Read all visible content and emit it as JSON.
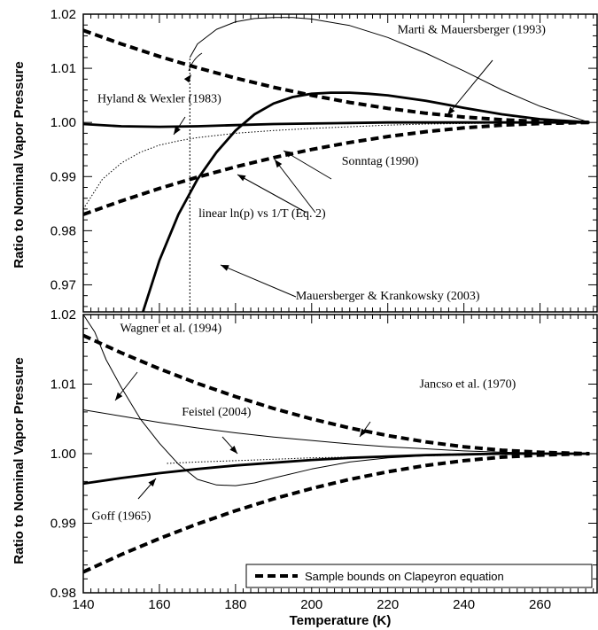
{
  "chart_data": [
    {
      "type": "line",
      "panel": "top",
      "ylabel": "Ratio to Nominal Vapor Pressure",
      "xlim": [
        140,
        275
      ],
      "ylim": [
        0.965,
        1.02
      ],
      "x_ticks": [
        140,
        160,
        180,
        200,
        220,
        240,
        260
      ],
      "y_ticks": [
        0.97,
        0.98,
        0.99,
        1.0,
        1.01,
        1.02
      ],
      "y_tick_labels": [
        "0.97",
        "0.98",
        "0.99",
        "1.00",
        "1.01",
        "1.02"
      ],
      "series": [
        {
          "style": "dashed-thick",
          "x": [
            140,
            150,
            160,
            170,
            180,
            190,
            200,
            210,
            220,
            230,
            240,
            250,
            260,
            273
          ],
          "y": [
            1.017,
            1.0145,
            1.0122,
            1.0101,
            1.0082,
            1.0065,
            1.005,
            1.0037,
            1.0026,
            1.0017,
            1.001,
            1.0005,
            1.0002,
            1.0
          ]
        },
        {
          "style": "dashed-thick",
          "x": [
            140,
            150,
            160,
            170,
            180,
            190,
            200,
            210,
            220,
            230,
            240,
            250,
            260,
            273
          ],
          "y": [
            0.983,
            0.9855,
            0.9878,
            0.9899,
            0.9918,
            0.9935,
            0.995,
            0.9963,
            0.9974,
            0.9983,
            0.999,
            0.9995,
            0.9998,
            1.0
          ]
        },
        {
          "style": "solid-thick",
          "x": [
            140,
            150,
            160,
            170,
            180,
            190,
            200,
            210,
            220,
            230,
            240,
            250,
            260,
            273
          ],
          "y": [
            0.9997,
            0.9993,
            0.9992,
            0.9993,
            0.9995,
            0.9997,
            0.9998,
            0.9999,
            1.0,
            1.0,
            1.0,
            1.0,
            1.0,
            1.0
          ]
        },
        {
          "style": "solid-thick",
          "x": [
            155,
            160,
            165,
            170,
            175,
            180,
            185,
            190,
            195,
            200,
            205,
            210,
            215,
            220,
            230,
            240,
            250,
            260,
            273
          ],
          "y": [
            0.9635,
            0.9745,
            0.983,
            0.9895,
            0.9945,
            0.9985,
            1.0015,
            1.0035,
            1.0047,
            1.0053,
            1.0055,
            1.0055,
            1.0053,
            1.005,
            1.004,
            1.0027,
            1.0015,
            1.0006,
            1.0
          ]
        },
        {
          "style": "solid-thin",
          "x": [
            168,
            170,
            175,
            180,
            185,
            190,
            195,
            200,
            210,
            220,
            230,
            240,
            250,
            260,
            273
          ],
          "y": [
            1.012,
            1.0145,
            1.0172,
            1.0186,
            1.0192,
            1.0194,
            1.0194,
            1.0191,
            1.0179,
            1.0157,
            1.0128,
            1.0095,
            1.006,
            1.003,
            1.0
          ]
        },
        {
          "style": "dotted",
          "x": [
            140,
            145,
            150,
            155,
            160,
            165,
            170,
            180,
            190,
            200,
            210,
            220,
            230,
            240,
            250,
            260,
            273
          ],
          "y": [
            0.984,
            0.9895,
            0.9925,
            0.9945,
            0.9958,
            0.9966,
            0.9972,
            0.998,
            0.9985,
            0.9989,
            0.9992,
            0.9995,
            0.9997,
            0.9998,
            0.9999,
            1.0,
            1.0
          ]
        },
        {
          "style": "dotted-vertical",
          "x": [
            168,
            168
          ],
          "y": [
            0.965,
            1.012
          ]
        }
      ],
      "annotations": [
        {
          "text": "Marti & Mauersberger (1993)",
          "x": 242,
          "y": 1.0165
        },
        {
          "text": "Hyland & Wexler (1983)",
          "x": 160,
          "y": 1.0037
        },
        {
          "text": "Sonntag (1990)",
          "x": 218,
          "y": 0.9922
        },
        {
          "text": "linear ln(p) vs 1/T (Eq. 2)",
          "x": 187,
          "y": 0.9825
        },
        {
          "text": "Mauersberger & Krankowsky (2003)",
          "x": 220,
          "y": 0.9673
        }
      ]
    },
    {
      "type": "line",
      "panel": "bottom",
      "xlabel": "Temperature (K)",
      "ylabel": "Ratio to Nominal Vapor Pressure",
      "xlim": [
        140,
        275
      ],
      "ylim": [
        0.98,
        1.02
      ],
      "x_ticks": [
        140,
        160,
        180,
        200,
        220,
        240,
        260
      ],
      "x_tick_labels": [
        "140",
        "160",
        "180",
        "200",
        "220",
        "240",
        "260"
      ],
      "y_ticks": [
        0.98,
        0.99,
        1.0,
        1.01,
        1.02
      ],
      "y_tick_labels": [
        "0.98",
        "0.99",
        "1.00",
        "1.01",
        "1.02"
      ],
      "series": [
        {
          "style": "dashed-thick",
          "x": [
            140,
            150,
            160,
            170,
            180,
            190,
            200,
            210,
            220,
            230,
            240,
            250,
            260,
            273
          ],
          "y": [
            1.017,
            1.0145,
            1.0122,
            1.0101,
            1.0082,
            1.0065,
            1.005,
            1.0037,
            1.0026,
            1.0017,
            1.001,
            1.0005,
            1.0002,
            1.0
          ]
        },
        {
          "style": "dashed-thick",
          "x": [
            140,
            150,
            160,
            170,
            180,
            190,
            200,
            210,
            220,
            230,
            240,
            250,
            260,
            273
          ],
          "y": [
            0.983,
            0.9855,
            0.9878,
            0.9899,
            0.9918,
            0.9935,
            0.995,
            0.9963,
            0.9974,
            0.9983,
            0.999,
            0.9995,
            0.9998,
            1.0
          ]
        },
        {
          "style": "solid-thick",
          "x": [
            140,
            150,
            160,
            170,
            180,
            190,
            200,
            210,
            220,
            230,
            240,
            250,
            260,
            273
          ],
          "y": [
            0.9957,
            0.9965,
            0.9972,
            0.9978,
            0.9983,
            0.9987,
            0.9991,
            0.9994,
            0.9996,
            0.9998,
            0.9999,
            1.0,
            1.0,
            1.0
          ]
        },
        {
          "style": "solid-thin",
          "x": [
            140,
            150,
            160,
            170,
            180,
            190,
            200,
            210,
            220,
            230,
            240,
            250,
            260,
            273
          ],
          "y": [
            1.0063,
            1.0054,
            1.0045,
            1.0037,
            1.003,
            1.0024,
            1.0019,
            1.0014,
            1.001,
            1.0007,
            1.0004,
            1.0002,
            1.0001,
            1.0
          ]
        },
        {
          "style": "solid-thin",
          "x": [
            140,
            143,
            146,
            150,
            155,
            160,
            165,
            170,
            175,
            180,
            185,
            190,
            200,
            210,
            220,
            230,
            240,
            250,
            260,
            273
          ],
          "y": [
            1.02,
            1.0175,
            1.0135,
            1.0095,
            1.005,
            1.0015,
            0.9985,
            0.9963,
            0.9955,
            0.9954,
            0.9958,
            0.9965,
            0.9978,
            0.9988,
            0.9994,
            0.9997,
            0.9999,
            1.0,
            1.0,
            1.0
          ]
        },
        {
          "style": "dotted",
          "x": [
            162,
            170,
            180,
            190,
            200,
            210,
            220,
            230,
            240,
            250,
            260,
            273
          ],
          "y": [
            0.9986,
            0.9988,
            0.999,
            0.9992,
            0.9994,
            0.9995,
            0.9996,
            0.9997,
            0.9998,
            0.9999,
            1.0,
            1.0
          ]
        }
      ],
      "annotations": [
        {
          "text": "Wagner et al. (1994)",
          "x": 163,
          "y": 1.0175
        },
        {
          "text": "Jancso et al. (1970)",
          "x": 241,
          "y": 1.0095
        },
        {
          "text": "Feistel (2004)",
          "x": 175,
          "y": 1.0055
        },
        {
          "text": "Goff (1965)",
          "x": 150,
          "y": 0.9905
        }
      ],
      "legend": {
        "position": "bottom-right",
        "label": "Sample bounds on Clapeyron equation",
        "style": "dashed-thick"
      }
    }
  ]
}
